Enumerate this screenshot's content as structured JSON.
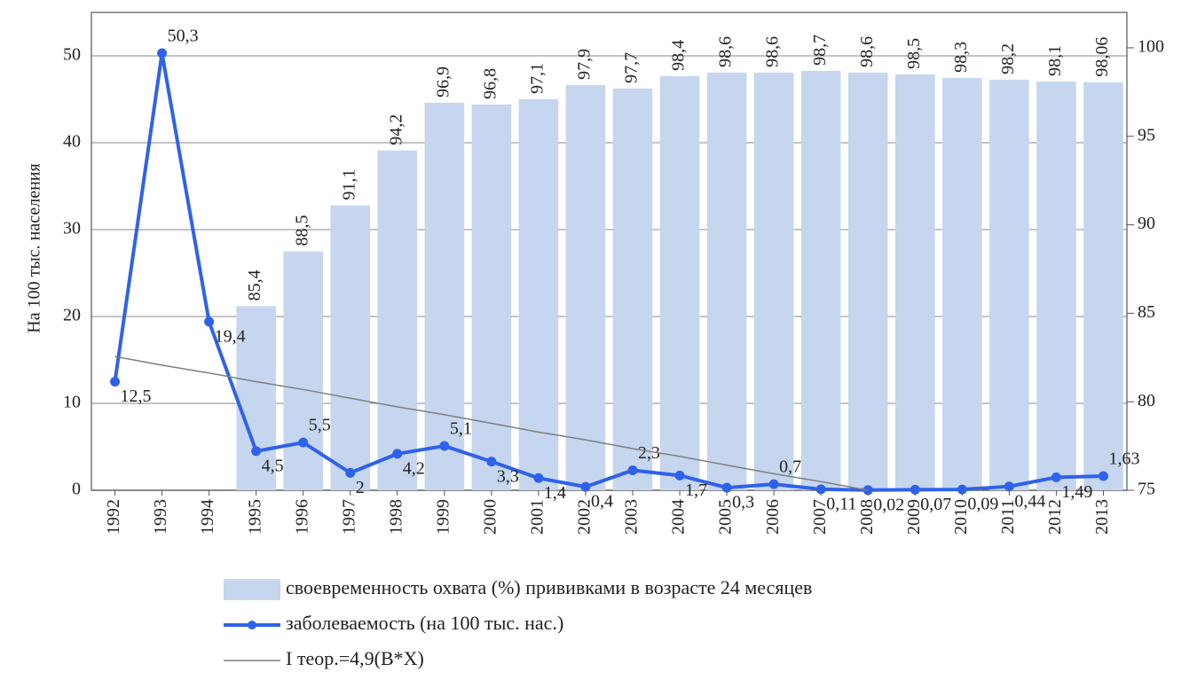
{
  "chart_data": {
    "type": "bar",
    "y_label": "На 100 тыс. населения",
    "categories": [
      "1992",
      "1993",
      "1994",
      "1995",
      "1996",
      "1997",
      "1998",
      "1999",
      "2000",
      "2001",
      "2002",
      "2003",
      "2004",
      "2005",
      "2006",
      "2007",
      "2008",
      "2009",
      "2010",
      "2011",
      "2012",
      "2013"
    ],
    "ylim": [
      0,
      55
    ],
    "yticks": [
      0,
      10,
      20,
      30,
      40,
      50
    ],
    "y2lim": [
      75,
      102
    ],
    "y2ticks": [
      75,
      80,
      85,
      90,
      95,
      100
    ],
    "grid": true,
    "legend": "bottom",
    "series": [
      {
        "name": "своевременность охвата (%) прививками в возрасте 24 месяцев",
        "type": "bar",
        "axis": "y2",
        "color": "#c6d6ef",
        "values": [
          null,
          null,
          null,
          85.4,
          88.5,
          91.1,
          94.2,
          96.9,
          96.8,
          97.1,
          97.9,
          97.7,
          98.4,
          98.6,
          98.6,
          98.7,
          98.6,
          98.5,
          98.3,
          98.2,
          98.1,
          98.06
        ],
        "value_labels": [
          null,
          null,
          null,
          "85,4",
          "88,5",
          "91,1",
          "94,2",
          "96,9",
          "96,8",
          "97,1",
          "97,9",
          "97,7",
          "98,4",
          "98,6",
          "98,6",
          "98,7",
          "98,6",
          "98,5",
          "98,3",
          "98,2",
          "98,1",
          "98,06"
        ]
      },
      {
        "name": "заболеваемость (на 100 тыс. нас.)",
        "type": "line",
        "markers": true,
        "color": "#2f62ea",
        "values": [
          12.5,
          50.3,
          19.4,
          4.5,
          5.5,
          2,
          4.2,
          5.1,
          3.3,
          1.4,
          0.4,
          2.3,
          1.7,
          0.3,
          0.7,
          0.11,
          0.02,
          0.07,
          0.09,
          0.44,
          1.49,
          1.63
        ],
        "value_labels": [
          "12,5",
          "50,3",
          "19,4",
          "4,5",
          "5,5",
          "2",
          "4,2",
          "5,1",
          "3,3",
          "1,4",
          "0,4",
          "2,3",
          "1,7",
          "0,3",
          "0,7",
          "0,11",
          "0,02",
          "0,07",
          "0,09",
          "0,44",
          "1,49",
          "1,63"
        ]
      },
      {
        "name": "I теор.=4,9(B*X)",
        "type": "line",
        "markers": false,
        "color": "#7f7f7f",
        "values": [
          15.4,
          14.4,
          13.5,
          12.5,
          11.6,
          10.6,
          9.6,
          8.7,
          7.7,
          6.7,
          5.8,
          4.8,
          3.9,
          2.9,
          1.9,
          1.0,
          0.0,
          null,
          null,
          null,
          null,
          null
        ]
      }
    ]
  }
}
